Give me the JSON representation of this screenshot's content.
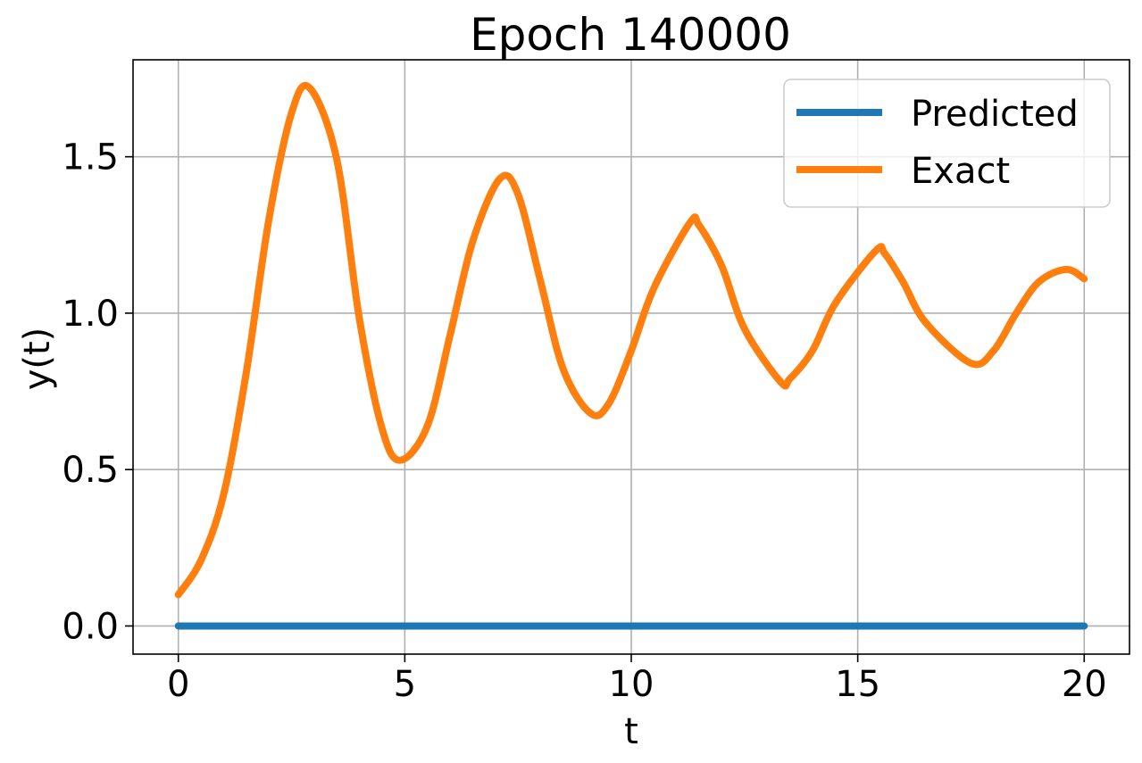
{
  "chart_data": {
    "type": "line",
    "title": "Epoch 140000",
    "xlabel": "t",
    "ylabel": "y(t)",
    "xlim": [
      -1,
      21
    ],
    "ylim": [
      -0.09,
      1.81
    ],
    "xticks": [
      0,
      5,
      10,
      15,
      20
    ],
    "xtick_labels": [
      "0",
      "5",
      "10",
      "15",
      "20"
    ],
    "yticks": [
      0.0,
      0.5,
      1.0,
      1.5
    ],
    "ytick_labels": [
      "0.0",
      "0.5",
      "1.0",
      "1.5"
    ],
    "grid": true,
    "legend_position": "top-right",
    "series": [
      {
        "name": "Predicted",
        "color": "#1f77b4",
        "x": [
          0,
          20
        ],
        "y": [
          0.0,
          0.0
        ]
      },
      {
        "name": "Exact",
        "color": "#ff7f0e",
        "x": [
          0,
          0.5,
          1.0,
          1.5,
          2.0,
          2.5,
          2.9,
          3.5,
          4.0,
          4.5,
          4.9,
          5.5,
          6.0,
          6.5,
          7.1,
          7.5,
          8.0,
          8.5,
          9.1,
          9.5,
          10.0,
          10.5,
          11.3,
          11.5,
          12.0,
          12.5,
          13.3,
          13.5,
          14.0,
          14.5,
          15.4,
          15.6,
          16.0,
          16.5,
          17.5,
          18.0,
          18.5,
          19.0,
          19.6,
          20.0
        ],
        "y": [
          0.1,
          0.21,
          0.42,
          0.81,
          1.3,
          1.64,
          1.72,
          1.49,
          0.98,
          0.63,
          0.53,
          0.64,
          0.93,
          1.23,
          1.43,
          1.38,
          1.1,
          0.82,
          0.68,
          0.71,
          0.88,
          1.08,
          1.29,
          1.28,
          1.15,
          0.95,
          0.78,
          0.79,
          0.88,
          1.03,
          1.2,
          1.19,
          1.1,
          0.97,
          0.84,
          0.88,
          1.0,
          1.1,
          1.14,
          1.11
        ]
      }
    ]
  }
}
